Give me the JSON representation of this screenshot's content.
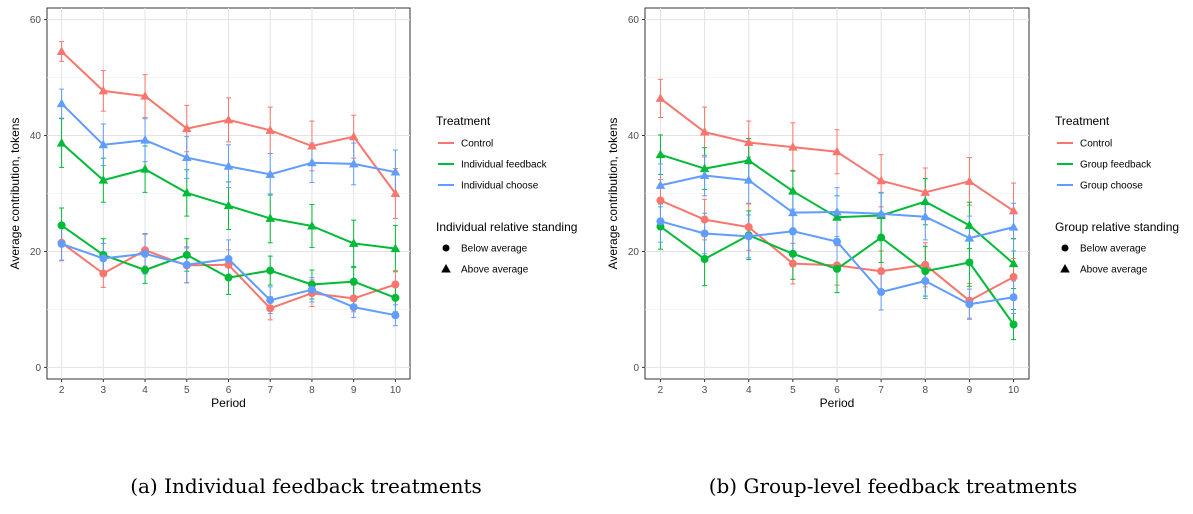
{
  "chart_data": [
    {
      "type": "line",
      "xlabel": "Period",
      "ylabel": "Average contribution, tokens",
      "x": [
        2,
        3,
        4,
        5,
        6,
        7,
        8,
        9,
        10
      ],
      "xlim": [
        1.65,
        10.35
      ],
      "ylim": [
        -2,
        62
      ],
      "yticks": [
        0,
        20,
        40,
        60
      ],
      "grid": true,
      "legend_position": "right",
      "color_legend": {
        "title": "Treatment",
        "entries": [
          {
            "label": "Control",
            "color": "#F8766D"
          },
          {
            "label": "Individual feedback",
            "color": "#00BA38"
          },
          {
            "label": "Individual choose",
            "color": "#619CFF"
          }
        ]
      },
      "shape_legend": {
        "title": "Individual relative standing",
        "entries": [
          {
            "label": "Below average",
            "shape": "circle"
          },
          {
            "label": "Above average",
            "shape": "triangle"
          }
        ]
      },
      "series": [
        {
          "treatment": 0,
          "standing": 1,
          "values": [
            54.5,
            47.7,
            46.8,
            41.2,
            42.7,
            40.9,
            38.2,
            39.8,
            30.0
          ],
          "err": [
            1.7,
            3.5,
            3.7,
            4.0,
            3.8,
            4.0,
            4.3,
            3.7,
            4.3
          ]
        },
        {
          "treatment": 1,
          "standing": 1,
          "values": [
            38.7,
            32.3,
            34.2,
            30.1,
            27.9,
            25.7,
            24.4,
            21.4,
            20.5
          ],
          "err": [
            4.2,
            3.8,
            4.0,
            4.0,
            4.1,
            4.2,
            3.7,
            4.0,
            4.0
          ]
        },
        {
          "treatment": 2,
          "standing": 1,
          "values": [
            45.5,
            38.4,
            39.2,
            36.2,
            34.7,
            33.3,
            35.3,
            35.1,
            33.7
          ],
          "err": [
            2.5,
            3.6,
            3.7,
            3.6,
            3.7,
            3.6,
            3.4,
            3.6,
            3.8
          ]
        },
        {
          "treatment": 0,
          "standing": 0,
          "values": [
            21.5,
            16.2,
            20.2,
            17.6,
            17.7,
            10.2,
            12.8,
            11.9,
            14.3
          ],
          "err": [
            3.1,
            2.4,
            2.7,
            3.0,
            2.6,
            2.0,
            2.3,
            2.3,
            2.4
          ]
        },
        {
          "treatment": 1,
          "standing": 0,
          "values": [
            24.5,
            19.4,
            16.8,
            19.4,
            15.5,
            16.7,
            14.3,
            14.8,
            12.0
          ],
          "err": [
            3.0,
            2.8,
            2.3,
            2.8,
            2.9,
            2.5,
            2.5,
            2.4,
            2.4
          ]
        },
        {
          "treatment": 2,
          "standing": 0,
          "values": [
            21.3,
            18.8,
            19.6,
            17.7,
            18.7,
            11.6,
            13.4,
            10.4,
            9.0
          ],
          "err": [
            2.8,
            2.6,
            3.5,
            3.1,
            3.3,
            2.3,
            2.1,
            1.8,
            1.8
          ]
        }
      ],
      "caption": "(a) Individual feedback treatments"
    },
    {
      "type": "line",
      "xlabel": "Period",
      "ylabel": "Average contribution, tokens",
      "x": [
        2,
        3,
        4,
        5,
        6,
        7,
        8,
        9,
        10
      ],
      "xlim": [
        1.65,
        10.35
      ],
      "ylim": [
        -2,
        62
      ],
      "yticks": [
        0,
        20,
        40,
        60
      ],
      "grid": true,
      "legend_position": "right",
      "color_legend": {
        "title": "Treatment",
        "entries": [
          {
            "label": "Control",
            "color": "#F8766D"
          },
          {
            "label": "Group feedback",
            "color": "#00BA38"
          },
          {
            "label": "Group choose",
            "color": "#619CFF"
          }
        ]
      },
      "shape_legend": {
        "title": "Group relative standing",
        "entries": [
          {
            "label": "Below average",
            "shape": "circle"
          },
          {
            "label": "Above average",
            "shape": "triangle"
          }
        ]
      },
      "series": [
        {
          "treatment": 0,
          "standing": 1,
          "values": [
            46.4,
            40.6,
            38.8,
            38.0,
            37.2,
            32.2,
            30.2,
            32.1,
            27.0
          ],
          "err": [
            3.3,
            4.3,
            3.7,
            4.2,
            3.8,
            4.5,
            4.2,
            4.1,
            4.8
          ]
        },
        {
          "treatment": 1,
          "standing": 1,
          "values": [
            36.7,
            34.3,
            35.7,
            30.4,
            25.9,
            26.2,
            28.6,
            24.5,
            17.9
          ],
          "err": [
            3.4,
            3.6,
            3.8,
            3.6,
            3.7,
            3.9,
            4.0,
            4.0,
            4.3
          ]
        },
        {
          "treatment": 2,
          "standing": 1,
          "values": [
            31.4,
            33.1,
            32.3,
            26.7,
            26.8,
            26.5,
            26.0,
            22.3,
            24.2
          ],
          "err": [
            3.7,
            3.5,
            4.0,
            3.8,
            4.2,
            3.7,
            4.0,
            3.8,
            4.1
          ]
        },
        {
          "treatment": 0,
          "standing": 0,
          "values": [
            28.8,
            25.5,
            24.2,
            17.9,
            17.6,
            16.6,
            17.7,
            11.5,
            15.6
          ],
          "err": [
            3.6,
            3.5,
            4.0,
            3.5,
            3.4,
            3.5,
            3.8,
            3.0,
            3.2
          ]
        },
        {
          "treatment": 1,
          "standing": 0,
          "values": [
            24.3,
            18.7,
            22.8,
            19.6,
            17.0,
            22.4,
            16.6,
            18.1,
            7.4
          ],
          "err": [
            3.9,
            4.6,
            4.2,
            4.4,
            4.1,
            4.3,
            4.3,
            4.1,
            2.6
          ]
        },
        {
          "treatment": 2,
          "standing": 0,
          "values": [
            25.2,
            23.1,
            22.6,
            23.5,
            21.7,
            13.0,
            14.9,
            10.9,
            12.1
          ],
          "err": [
            3.6,
            3.5,
            3.7,
            3.8,
            4.0,
            3.1,
            3.0,
            2.6,
            2.8
          ]
        }
      ],
      "caption": "(b) Group-level feedback treatments"
    }
  ]
}
